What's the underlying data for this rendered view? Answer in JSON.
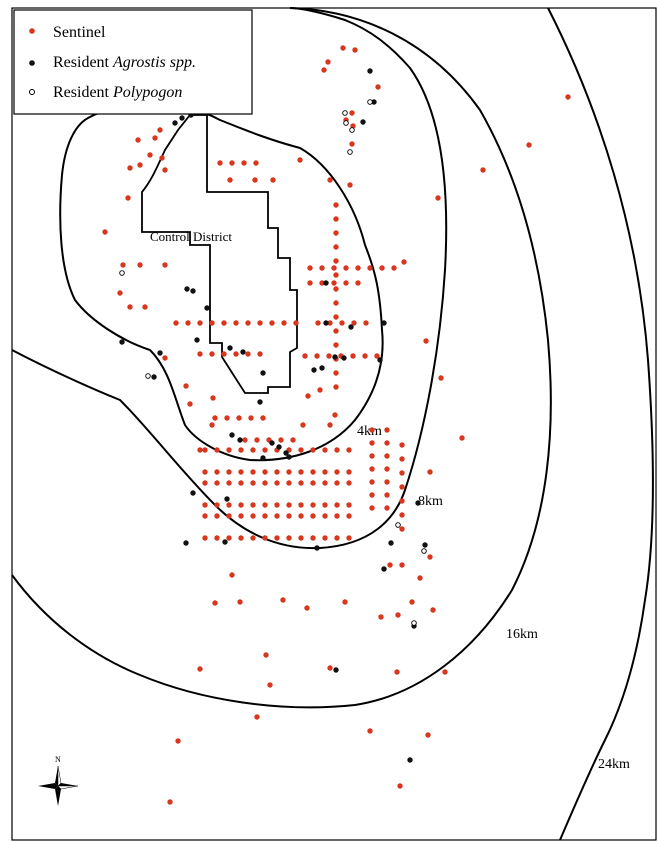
{
  "map": {
    "control_district_label": "Control District",
    "buffer_labels": [
      "4km",
      "8km",
      "16km",
      "24km"
    ],
    "north_label": "N"
  },
  "legend": {
    "items": [
      {
        "name": "sentinel",
        "parts": [
          {
            "text": "Sentinel",
            "italic": false
          }
        ],
        "marker": "red-dot"
      },
      {
        "name": "resident-agrostis",
        "parts": [
          {
            "text": "Resident ",
            "italic": false
          },
          {
            "text": "Agrostis spp.",
            "italic": true
          }
        ],
        "marker": "black-dot"
      },
      {
        "name": "resident-polypogon",
        "parts": [
          {
            "text": "Resident ",
            "italic": false
          },
          {
            "text": "Polypogon",
            "italic": true
          }
        ],
        "marker": "open-circle"
      }
    ]
  },
  "colors": {
    "sentinel": "#d9361e",
    "agrostis": "#111111",
    "polypogon": "#000000",
    "line": "#000000"
  }
}
